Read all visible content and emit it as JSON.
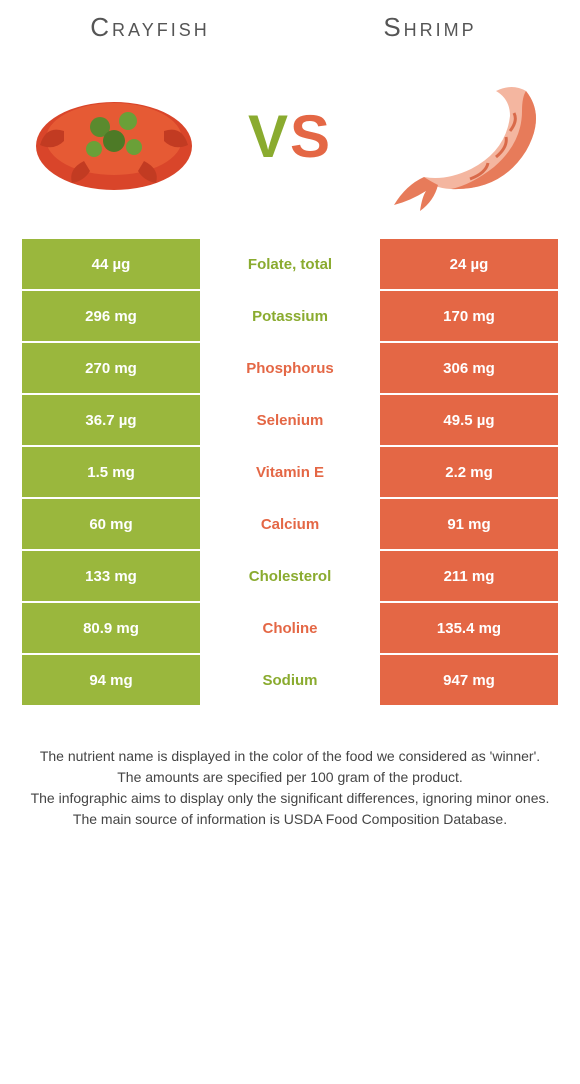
{
  "leftTitle": "Crayfish",
  "rightTitle": "Shrimp",
  "vs_v": "V",
  "vs_s": "S",
  "colors": {
    "green": "#9ab73d",
    "orange": "#e46745",
    "greenText": "#8aab2f",
    "orangeText": "#e46745",
    "bg": "#ffffff",
    "text": "#444444"
  },
  "rows": [
    {
      "left": "44 µg",
      "label": "Folate, total",
      "right": "24 µg",
      "winner": "green"
    },
    {
      "left": "296 mg",
      "label": "Potassium",
      "right": "170 mg",
      "winner": "green"
    },
    {
      "left": "270 mg",
      "label": "Phosphorus",
      "right": "306 mg",
      "winner": "orange"
    },
    {
      "left": "36.7 µg",
      "label": "Selenium",
      "right": "49.5 µg",
      "winner": "orange"
    },
    {
      "left": "1.5 mg",
      "label": "Vitamin E",
      "right": "2.2 mg",
      "winner": "orange"
    },
    {
      "left": "60 mg",
      "label": "Calcium",
      "right": "91 mg",
      "winner": "orange"
    },
    {
      "left": "133 mg",
      "label": "Cholesterol",
      "right": "211 mg",
      "winner": "green"
    },
    {
      "left": "80.9 mg",
      "label": "Choline",
      "right": "135.4 mg",
      "winner": "orange"
    },
    {
      "left": "94 mg",
      "label": "Sodium",
      "right": "947 mg",
      "winner": "green"
    }
  ],
  "footer": [
    "The nutrient name is displayed in the color of the food we considered as 'winner'.",
    "The amounts are specified per 100 gram of the product.",
    "The infographic aims to display only the significant differences, ignoring minor ones.",
    "The main source of information is USDA Food Composition Database."
  ]
}
